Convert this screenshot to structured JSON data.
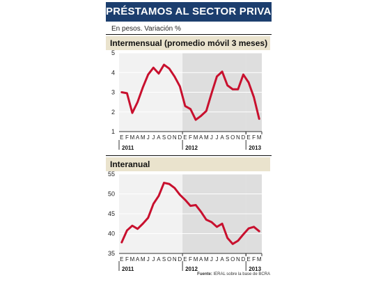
{
  "header": {
    "title": "PRÉSTAMOS AL SECTOR PRIVADO",
    "subtitle": "En pesos. Variación %"
  },
  "colors": {
    "title_bg": "#1c3e6e",
    "panel_header_bg": "#eae3cd",
    "plot_bg": "#f2f2f2",
    "shade_bg": "#dedede",
    "line": "#c8102e"
  },
  "chart_data": [
    {
      "type": "line",
      "title": "Intermensual (promedio móvil 3 meses)",
      "ylim": [
        1,
        5
      ],
      "yticks": [
        1,
        2,
        3,
        4,
        5
      ],
      "x": [
        "E",
        "F",
        "M",
        "A",
        "M",
        "J",
        "J",
        "A",
        "S",
        "O",
        "N",
        "D",
        "E",
        "F",
        "M",
        "A",
        "M",
        "J",
        "J",
        "A",
        "S",
        "O",
        "N",
        "D",
        "E",
        "F",
        "M"
      ],
      "years": [
        {
          "label": "2011",
          "start": 0
        },
        {
          "label": "2012",
          "start": 12
        },
        {
          "label": "2013",
          "start": 24
        }
      ],
      "shaded_ranges": [
        [
          12,
          24
        ],
        [
          24,
          27
        ]
      ],
      "grid": true,
      "series": [
        {
          "values": [
            3.0,
            2.95,
            1.95,
            2.5,
            3.25,
            3.9,
            4.25,
            3.95,
            4.4,
            4.2,
            3.8,
            3.3,
            2.3,
            2.15,
            1.6,
            1.8,
            2.05,
            2.95,
            3.8,
            4.05,
            3.35,
            3.15,
            3.15,
            3.9,
            3.5,
            2.75,
            1.65
          ]
        }
      ]
    },
    {
      "type": "line",
      "title": "Interanual",
      "ylim": [
        35,
        55
      ],
      "yticks": [
        35,
        40,
        45,
        50,
        55
      ],
      "x": [
        "E",
        "F",
        "M",
        "A",
        "M",
        "J",
        "J",
        "A",
        "S",
        "O",
        "N",
        "D",
        "E",
        "F",
        "M",
        "A",
        "M",
        "J",
        "J",
        "A",
        "S",
        "O",
        "N",
        "D",
        "E",
        "F",
        "M"
      ],
      "years": [
        {
          "label": "2011",
          "start": 0
        },
        {
          "label": "2012",
          "start": 12
        },
        {
          "label": "2013",
          "start": 24
        }
      ],
      "shaded_ranges": [
        [
          12,
          24
        ],
        [
          24,
          27
        ]
      ],
      "grid": true,
      "series": [
        {
          "values": [
            37.8,
            40.8,
            42.0,
            41.2,
            42.5,
            44.0,
            47.5,
            49.5,
            52.8,
            52.5,
            51.5,
            49.8,
            48.5,
            47.0,
            47.2,
            45.5,
            43.5,
            42.9,
            41.7,
            42.5,
            38.9,
            37.4,
            38.2,
            39.8,
            41.3,
            41.7,
            40.6
          ]
        }
      ]
    }
  ],
  "footer": {
    "source_label": "Fuente:",
    "source_text": "IERAL sobre la base de BCRA"
  }
}
